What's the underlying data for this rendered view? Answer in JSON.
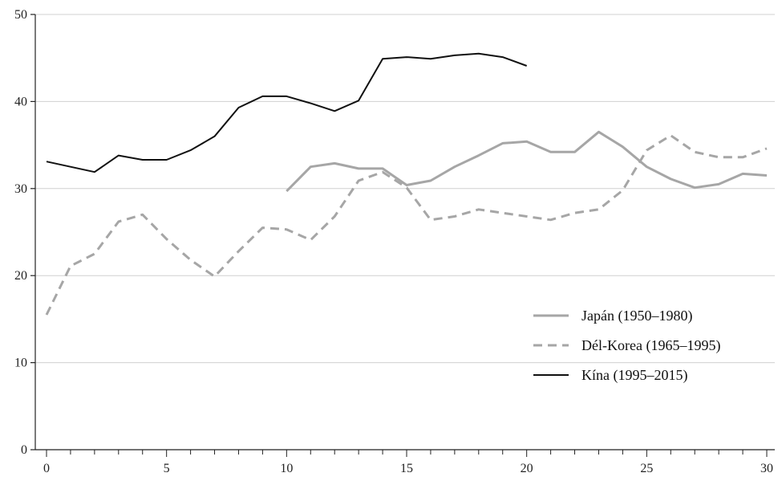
{
  "chart_data": {
    "type": "line",
    "title": "",
    "xlabel": "",
    "ylabel": "",
    "xlim": [
      0,
      30
    ],
    "ylim": [
      0,
      50
    ],
    "xticks": [
      0,
      5,
      10,
      15,
      20,
      25,
      30
    ],
    "yticks": [
      0,
      10,
      20,
      30,
      40,
      50
    ],
    "grid": "horizontal",
    "legend_position": "lower-right",
    "series": [
      {
        "name": "Japán (1950–1980)",
        "color": "#a6a6a6",
        "style": "solid",
        "x": [
          10,
          11,
          12,
          13,
          14,
          15,
          16,
          17,
          18,
          19,
          20,
          21,
          22,
          23,
          24,
          25,
          26,
          27,
          28,
          29,
          30
        ],
        "values": [
          29.7,
          32.5,
          32.9,
          32.3,
          32.3,
          30.4,
          30.9,
          32.5,
          33.8,
          35.2,
          35.4,
          34.2,
          34.2,
          36.5,
          34.8,
          32.5,
          31.1,
          30.1,
          30.5,
          31.7,
          31.5
        ]
      },
      {
        "name": "Dél-Korea (1965–1995)",
        "color": "#a6a6a6",
        "style": "dashed",
        "x": [
          0,
          1,
          2,
          3,
          4,
          5,
          6,
          7,
          8,
          9,
          10,
          11,
          12,
          13,
          14,
          15,
          16,
          17,
          18,
          19,
          20,
          21,
          22,
          23,
          24,
          25,
          26,
          27,
          28,
          29,
          30
        ],
        "values": [
          15.5,
          21.1,
          22.5,
          26.2,
          27.0,
          24.2,
          21.8,
          19.9,
          22.8,
          25.5,
          25.3,
          24.1,
          26.8,
          30.9,
          31.9,
          30.1,
          26.4,
          26.8,
          27.6,
          27.2,
          26.8,
          26.4,
          27.2,
          27.6,
          29.8,
          34.4,
          36.1,
          34.2,
          33.6,
          33.6,
          34.6
        ]
      },
      {
        "name": "Kína (1995–2015)",
        "color": "#111111",
        "style": "solid",
        "x": [
          0,
          1,
          2,
          3,
          4,
          5,
          6,
          7,
          8,
          9,
          10,
          11,
          12,
          13,
          14,
          15,
          16,
          17,
          18,
          19,
          20
        ],
        "values": [
          33.1,
          32.5,
          31.9,
          33.8,
          33.3,
          33.3,
          34.4,
          36.0,
          39.3,
          40.6,
          40.6,
          39.8,
          38.9,
          40.1,
          44.9,
          45.1,
          44.9,
          45.3,
          45.5,
          45.1,
          44.1
        ]
      }
    ]
  }
}
